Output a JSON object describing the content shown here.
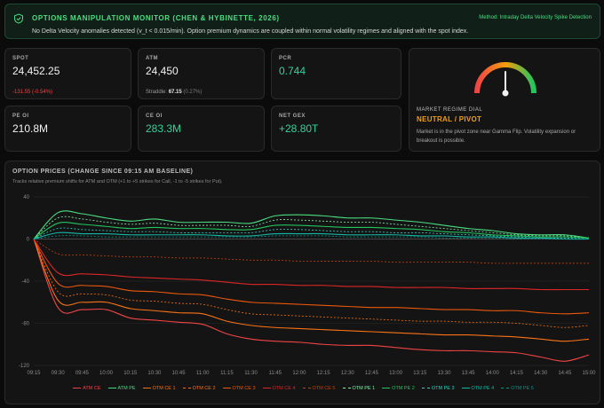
{
  "alert": {
    "title": "OPTIONS MANIPULATION MONITOR (CHEN & HYBINETTE, 2026)",
    "method": "Method: Intraday Delta Velocity Spike Detection",
    "message": "No Delta Velocity anomalies detected (v_t < 0.015/min). Option premium dynamics are coupled within normal volatility regimes and aligned with the spot index.",
    "icon": "shield-check-icon"
  },
  "metrics": {
    "spot": {
      "label": "SPOT",
      "value": "24,452.25",
      "change": "-131.55 (-0.54%)"
    },
    "atm": {
      "label": "ATM",
      "value": "24,450",
      "straddle_label": "Straddle:",
      "straddle_value": "67.15",
      "straddle_pct": "(0.27%)"
    },
    "pcr": {
      "label": "PCR",
      "value": "0.744"
    },
    "pe_oi": {
      "label": "PE OI",
      "value": "210.8M"
    },
    "ce_oi": {
      "label": "CE OI",
      "value": "283.3M"
    },
    "net_gex": {
      "label": "NET GEX",
      "value": "+28.80T"
    }
  },
  "regime": {
    "label": "MARKET REGIME DIAL",
    "value": "NEUTRAL / PIVOT",
    "description": "Market is in the pivot zone near Gamma Flip. Volatility expansion or breakout is possible.",
    "dial_position": 0.5
  },
  "chart": {
    "title": "OPTION PRICES (CHANGE SINCE 09:15 AM BASELINE)",
    "subtitle": "Tracks relative premium shifts for ATM and OTM (+1 to +5 strikes for Call, -1 to -5 strikes for Put)."
  },
  "chart_data": {
    "type": "line",
    "title": "OPTION PRICES (CHANGE SINCE 09:15 AM BASELINE)",
    "x": [
      "09:15",
      "09:30",
      "09:45",
      "10:00",
      "10:15",
      "10:30",
      "10:45",
      "11:00",
      "11:15",
      "11:30",
      "11:45",
      "12:00",
      "12:15",
      "12:30",
      "12:45",
      "13:00",
      "13:15",
      "13:30",
      "13:45",
      "14:00",
      "14:15",
      "14:30",
      "14:45",
      "15:00"
    ],
    "ylim": [
      -120,
      40
    ],
    "yticks": [
      40,
      0,
      -40,
      -80,
      -120
    ],
    "series": [
      {
        "name": "ATM CE",
        "color": "#ef4444",
        "dash": false,
        "values": [
          0,
          -65,
          -67,
          -67,
          -75,
          -77,
          -79,
          -81,
          -90,
          -95,
          -97,
          -98,
          -100,
          -101,
          -101,
          -103,
          -105,
          -106,
          -106,
          -107,
          -108,
          -112,
          -116,
          -110
        ]
      },
      {
        "name": "ATM PE",
        "color": "#4ade80",
        "dash": false,
        "values": [
          0,
          25,
          24,
          20,
          17,
          19,
          16,
          16,
          16,
          15,
          22,
          23,
          22,
          20,
          20,
          18,
          16,
          13,
          10,
          8,
          5,
          4,
          4,
          1
        ]
      },
      {
        "name": "OTM CE 1",
        "color": "#f97316",
        "dash": false,
        "values": [
          0,
          -58,
          -60,
          -60,
          -66,
          -68,
          -70,
          -71,
          -78,
          -82,
          -84,
          -85,
          -86,
          -87,
          -88,
          -89,
          -90,
          -91,
          -91,
          -92,
          -93,
          -95,
          -97,
          -95
        ]
      },
      {
        "name": "OTM CE 2",
        "color": "#f97316",
        "dash": true,
        "values": [
          0,
          -50,
          -52,
          -53,
          -58,
          -59,
          -61,
          -62,
          -67,
          -71,
          -72,
          -73,
          -74,
          -75,
          -76,
          -77,
          -78,
          -78,
          -79,
          -79,
          -80,
          -82,
          -84,
          -82
        ]
      },
      {
        "name": "OTM CE 3",
        "color": "#ea580c",
        "dash": false,
        "values": [
          0,
          -42,
          -44,
          -45,
          -49,
          -50,
          -52,
          -53,
          -57,
          -60,
          -61,
          -62,
          -63,
          -64,
          -65,
          -65,
          -66,
          -67,
          -67,
          -68,
          -68,
          -70,
          -71,
          -70
        ]
      },
      {
        "name": "OTM CE 4",
        "color": "#dc2626",
        "dash": false,
        "values": [
          0,
          -32,
          -33,
          -34,
          -36,
          -37,
          -38,
          -39,
          -41,
          -43,
          -43,
          -44,
          -44,
          -45,
          -45,
          -46,
          -46,
          -46,
          -47,
          -47,
          -47,
          -48,
          -48,
          -48
        ]
      },
      {
        "name": "OTM CE 5",
        "color": "#c2410c",
        "dash": true,
        "values": [
          0,
          -14,
          -15,
          -16,
          -17,
          -17,
          -18,
          -18,
          -19,
          -20,
          -20,
          -21,
          -21,
          -21,
          -21,
          -22,
          -22,
          -22,
          -22,
          -23,
          -23,
          -23,
          -23,
          -23
        ]
      },
      {
        "name": "OTM PE 1",
        "color": "#86efac",
        "dash": true,
        "values": [
          0,
          20,
          19,
          16,
          14,
          15,
          13,
          13,
          13,
          12,
          18,
          18,
          17,
          16,
          16,
          14,
          12,
          10,
          8,
          6,
          4,
          3,
          3,
          1
        ]
      },
      {
        "name": "OTM PE 2",
        "color": "#22c55e",
        "dash": false,
        "values": [
          0,
          15,
          14,
          12,
          10,
          11,
          10,
          10,
          9,
          9,
          13,
          13,
          12,
          11,
          11,
          10,
          9,
          7,
          6,
          4,
          3,
          2,
          2,
          1
        ]
      },
      {
        "name": "OTM PE 3",
        "color": "#2dd4bf",
        "dash": true,
        "values": [
          0,
          10,
          9,
          8,
          7,
          7,
          6,
          6,
          6,
          6,
          9,
          9,
          8,
          7,
          7,
          6,
          6,
          5,
          4,
          3,
          2,
          1,
          1,
          0
        ]
      },
      {
        "name": "OTM PE 4",
        "color": "#14b8a6",
        "dash": false,
        "values": [
          0,
          6,
          5,
          5,
          4,
          4,
          4,
          4,
          3,
          3,
          5,
          5,
          5,
          4,
          4,
          4,
          3,
          3,
          2,
          2,
          1,
          1,
          0,
          0
        ]
      },
      {
        "name": "OTM PE 5",
        "color": "#0d9488",
        "dash": true,
        "values": [
          0,
          3,
          3,
          2,
          2,
          2,
          2,
          2,
          2,
          2,
          3,
          3,
          3,
          2,
          2,
          2,
          2,
          1,
          1,
          1,
          0,
          0,
          0,
          0
        ]
      }
    ]
  }
}
